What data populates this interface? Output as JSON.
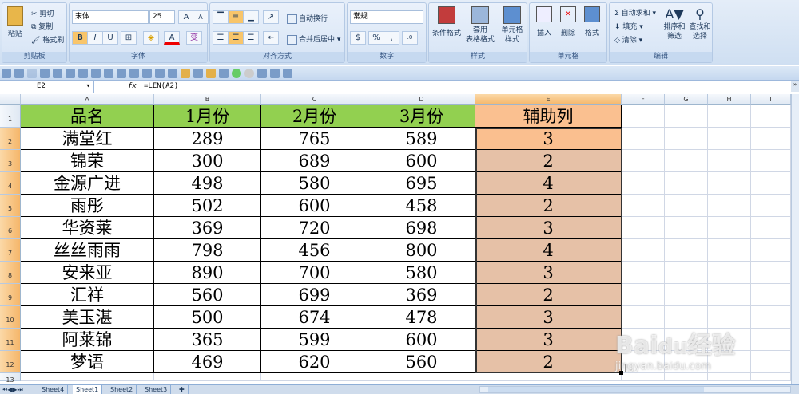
{
  "ribbon": {
    "clipboard": {
      "label": "剪贴板",
      "paste": "粘贴",
      "cut": "剪切",
      "copy": "复制",
      "format_painter": "格式刷"
    },
    "font": {
      "label": "字体",
      "font_name": "宋体",
      "font_size": "25",
      "bold": "B",
      "italic": "I",
      "underline": "U",
      "grow": "A",
      "shrink": "A",
      "font_color": "A",
      "phonetic": "变"
    },
    "alignment": {
      "label": "对齐方式",
      "wrap": "自动换行",
      "merge": "合并后居中"
    },
    "number": {
      "label": "数字",
      "format": "常规",
      "percent": "%",
      "comma": ","
    },
    "styles": {
      "label": "样式",
      "conditional": "条件格式",
      "table": "套用\n表格格式",
      "cell_styles": "单元格\n样式"
    },
    "cells": {
      "label": "单元格",
      "insert": "插入",
      "delete": "删除",
      "format": "格式"
    },
    "editing": {
      "label": "编辑",
      "autosum": "自动求和",
      "fill": "填充",
      "clear": "清除",
      "sort": "排序和\n筛选",
      "find": "查找和\n选择"
    }
  },
  "formula_bar": {
    "name_box": "E2",
    "fx": "fx",
    "formula": "=LEN(A2)"
  },
  "columns": [
    "A",
    "B",
    "C",
    "D",
    "E",
    "F",
    "G",
    "H",
    "I"
  ],
  "rows": [
    [
      "品名",
      "1月份",
      "2月份",
      "3月份",
      "辅助列"
    ],
    [
      "满堂红",
      "289",
      "765",
      "589",
      "3"
    ],
    [
      "锦荣",
      "300",
      "689",
      "600",
      "2"
    ],
    [
      "金源广进",
      "498",
      "580",
      "695",
      "4"
    ],
    [
      "雨彤",
      "502",
      "600",
      "458",
      "2"
    ],
    [
      "华资莱",
      "369",
      "720",
      "698",
      "3"
    ],
    [
      "丝丝雨雨",
      "798",
      "456",
      "800",
      "4"
    ],
    [
      "安来亚",
      "890",
      "700",
      "580",
      "3"
    ],
    [
      "汇祥",
      "560",
      "699",
      "369",
      "2"
    ],
    [
      "美玉湛",
      "500",
      "674",
      "478",
      "3"
    ],
    [
      "阿莱锦",
      "365",
      "599",
      "600",
      "3"
    ],
    [
      "梦语",
      "469",
      "620",
      "560",
      "2"
    ]
  ],
  "row_numbers": [
    "1",
    "2",
    "3",
    "4",
    "5",
    "6",
    "7",
    "8",
    "9",
    "10",
    "11",
    "12",
    "13"
  ],
  "sheets": [
    "Sheet4",
    "Sheet1",
    "Sheet2",
    "Sheet3"
  ],
  "active_sheet": "Sheet1",
  "watermark": "Baidu经验 jingyan.baidu.com",
  "colors": {
    "header_fill": "#92d050",
    "helper_header_fill": "#fac090",
    "active_cell": "#fabf8f",
    "selection": "#e6c1a7"
  }
}
